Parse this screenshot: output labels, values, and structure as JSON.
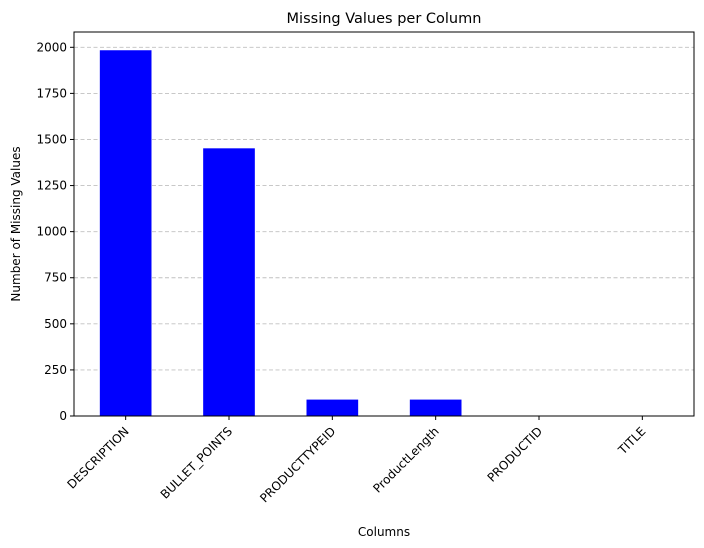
{
  "chart_data": {
    "type": "bar",
    "title": "Missing Values per Column",
    "xlabel": "Columns",
    "ylabel": "Number of Missing Values",
    "categories": [
      "DESCRIPTION",
      "BULLET_POINTS",
      "PRODUCTTYPEID",
      "ProductLength",
      "PRODUCTID",
      "TITLE"
    ],
    "values": [
      1984,
      1452,
      89,
      89,
      0,
      0
    ],
    "yticks": [
      0,
      250,
      500,
      750,
      1000,
      1250,
      1500,
      1750,
      2000
    ],
    "ytick_labels": [
      "0",
      "250",
      "500",
      "750",
      "1000",
      "1250",
      "1500",
      "1750",
      "2000"
    ],
    "ylim": [
      0,
      2083
    ],
    "bar_color": "#0000ff",
    "grid": {
      "axis": "y",
      "style": "dashed",
      "color": "#c0c0c0"
    },
    "xtick_rotation": 45
  }
}
